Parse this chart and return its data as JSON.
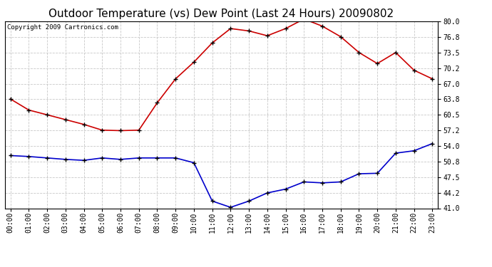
{
  "title": "Outdoor Temperature (vs) Dew Point (Last 24 Hours) 20090802",
  "copyright_text": "Copyright 2009 Cartronics.com",
  "x_labels": [
    "00:00",
    "01:00",
    "02:00",
    "03:00",
    "04:00",
    "05:00",
    "06:00",
    "07:00",
    "08:00",
    "09:00",
    "10:00",
    "11:00",
    "12:00",
    "13:00",
    "14:00",
    "15:00",
    "16:00",
    "17:00",
    "18:00",
    "19:00",
    "20:00",
    "21:00",
    "22:00",
    "23:00"
  ],
  "temp_data": [
    63.8,
    61.5,
    60.5,
    59.5,
    58.5,
    57.3,
    57.2,
    57.3,
    63.0,
    68.0,
    71.5,
    75.5,
    78.5,
    78.0,
    77.0,
    78.5,
    80.5,
    79.0,
    76.8,
    73.5,
    71.2,
    73.5,
    69.8,
    68.0
  ],
  "dew_data": [
    52.0,
    51.8,
    51.5,
    51.2,
    51.0,
    51.5,
    51.2,
    51.5,
    51.5,
    51.5,
    50.5,
    42.5,
    41.2,
    42.5,
    44.2,
    45.0,
    46.5,
    46.3,
    46.5,
    48.2,
    48.3,
    52.5,
    53.0,
    54.5
  ],
  "temp_color": "#cc0000",
  "dew_color": "#0000cc",
  "bg_color": "#ffffff",
  "grid_color": "#c8c8c8",
  "ylim": [
    41.0,
    80.0
  ],
  "yticks": [
    41.0,
    44.2,
    47.5,
    50.8,
    54.0,
    57.2,
    60.5,
    63.8,
    67.0,
    70.2,
    73.5,
    76.8,
    80.0
  ],
  "title_fontsize": 11,
  "copyright_fontsize": 6.5,
  "tick_fontsize": 7,
  "border_color": "#000000"
}
